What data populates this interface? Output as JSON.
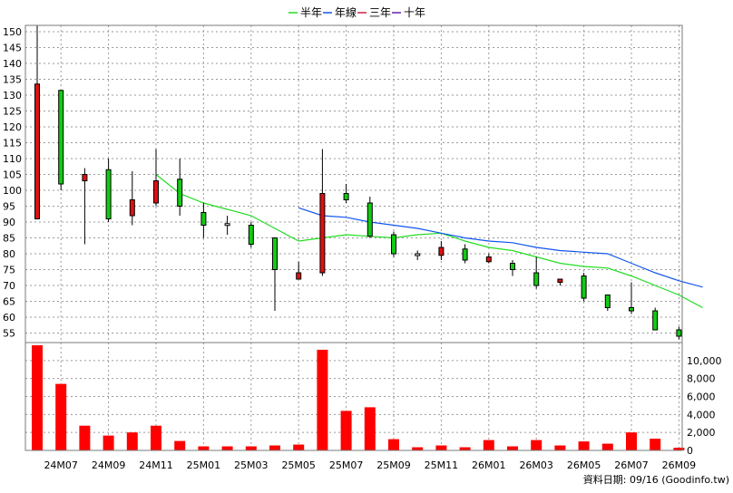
{
  "source_note": "資料日期: 09/16  (Goodinfo.tw)",
  "chart_data": {
    "type": "candlestick_with_volume",
    "legend": [
      {
        "name": "半年",
        "color": "#22dd22"
      },
      {
        "name": "年線",
        "color": "#1155ee"
      },
      {
        "name": "三年",
        "color": "#cc2244"
      },
      {
        "name": "十年",
        "color": "#6622aa"
      }
    ],
    "colors": {
      "up": "#dd1111",
      "down": "#11cc11",
      "doji": "#ffffff",
      "volume": "#ff0000"
    },
    "price_axis": {
      "min": 52,
      "max": 152,
      "ticks": [
        55,
        60,
        65,
        70,
        75,
        80,
        85,
        90,
        95,
        100,
        105,
        110,
        115,
        120,
        125,
        130,
        135,
        140,
        145,
        150
      ]
    },
    "volume_axis": {
      "min": 0,
      "max": 12000,
      "ticks": [
        0,
        2000,
        4000,
        6000,
        8000,
        10000
      ],
      "tick_labels": [
        "0",
        "2,000",
        "4,000",
        "6,000",
        "8,000",
        "10,000"
      ]
    },
    "x_labels": [
      "24M07",
      "24M09",
      "24M11",
      "25M01",
      "25M03",
      "25M05",
      "25M07",
      "25M09",
      "25M11",
      "26M01",
      "26M03",
      "26M05",
      "26M07",
      "26M09"
    ],
    "candles": [
      {
        "m": "24M06",
        "o": 91,
        "h": 152,
        "l": 91,
        "c": 133.5,
        "v": 11700
      },
      {
        "m": "24M07",
        "o": 131.5,
        "h": 131.5,
        "l": 100,
        "c": 102,
        "v": 7400
      },
      {
        "m": "24M08",
        "o": 103,
        "h": 107,
        "l": 83,
        "c": 105,
        "v": 2750
      },
      {
        "m": "24M09",
        "o": 106.5,
        "h": 110,
        "l": 90,
        "c": 91,
        "v": 1650
      },
      {
        "m": "24M10",
        "o": 92,
        "h": 106,
        "l": 89,
        "c": 97,
        "v": 2000
      },
      {
        "m": "24M11",
        "o": 96,
        "h": 113,
        "l": 95,
        "c": 103,
        "v": 2750
      },
      {
        "m": "24M12",
        "o": 103.5,
        "h": 110,
        "l": 92,
        "c": 95,
        "v": 1050
      },
      {
        "m": "25M01",
        "o": 93,
        "h": 96,
        "l": 85,
        "c": 89,
        "v": 450
      },
      {
        "m": "25M02",
        "o": 89.5,
        "h": 92,
        "l": 86,
        "c": 89.5,
        "v": 450
      },
      {
        "m": "25M03",
        "o": 89,
        "h": 90,
        "l": 82,
        "c": 83,
        "v": 450
      },
      {
        "m": "25M04",
        "o": 85,
        "h": 85,
        "l": 62,
        "c": 75,
        "v": 550
      },
      {
        "m": "25M05",
        "o": 72,
        "h": 77.5,
        "l": 72,
        "c": 74,
        "v": 650
      },
      {
        "m": "25M06",
        "o": 74,
        "h": 113,
        "l": 73,
        "c": 99,
        "v": 11200
      },
      {
        "m": "25M07",
        "o": 99,
        "h": 102,
        "l": 96,
        "c": 97,
        "v": 4400
      },
      {
        "m": "25M08",
        "o": 96,
        "h": 98,
        "l": 85,
        "c": 85.5,
        "v": 4800
      },
      {
        "m": "25M09",
        "o": 86,
        "h": 87,
        "l": 79,
        "c": 80,
        "v": 1250
      },
      {
        "m": "25M10",
        "o": 80,
        "h": 81,
        "l": 78,
        "c": 80,
        "v": 350
      },
      {
        "m": "25M11",
        "o": 79.5,
        "h": 84,
        "l": 78,
        "c": 82,
        "v": 550
      },
      {
        "m": "25M12",
        "o": 81.5,
        "h": 83,
        "l": 77,
        "c": 78,
        "v": 350
      },
      {
        "m": "26M01",
        "o": 77.5,
        "h": 80,
        "l": 77,
        "c": 79,
        "v": 1150
      },
      {
        "m": "26M02",
        "o": 77,
        "h": 78,
        "l": 73,
        "c": 75,
        "v": 450
      },
      {
        "m": "26M03",
        "o": 74,
        "h": 79,
        "l": 69,
        "c": 70,
        "v": 1150
      },
      {
        "m": "26M04",
        "o": 71,
        "h": 72,
        "l": 70,
        "c": 72,
        "v": 550
      },
      {
        "m": "26M05",
        "o": 73,
        "h": 74,
        "l": 65,
        "c": 66,
        "v": 1000
      },
      {
        "m": "26M06",
        "o": 67,
        "h": 67,
        "l": 62,
        "c": 63,
        "v": 750
      },
      {
        "m": "26M07",
        "o": 63,
        "h": 71,
        "l": 61,
        "c": 62,
        "v": 2000
      },
      {
        "m": "26M08",
        "o": 62,
        "h": 63,
        "l": 56,
        "c": 56,
        "v": 1300
      },
      {
        "m": "26M09",
        "o": 56,
        "h": 57,
        "l": 53,
        "c": 54,
        "v": 300
      }
    ],
    "ma_half_year": {
      "name": "半年",
      "start_index": 5,
      "values": [
        105,
        99,
        96,
        94,
        92,
        88,
        84,
        85,
        86,
        85.5,
        85,
        86,
        86.5,
        84,
        82,
        81,
        79,
        77,
        76,
        75.5,
        73,
        70,
        67,
        63
      ]
    },
    "ma_year": {
      "name": "年線",
      "start_index": 11,
      "values": [
        94.5,
        92,
        91.5,
        90,
        89,
        88,
        86.5,
        85,
        84,
        83.5,
        82,
        81,
        80.5,
        80,
        77,
        74,
        71.5,
        69.5
      ]
    }
  }
}
